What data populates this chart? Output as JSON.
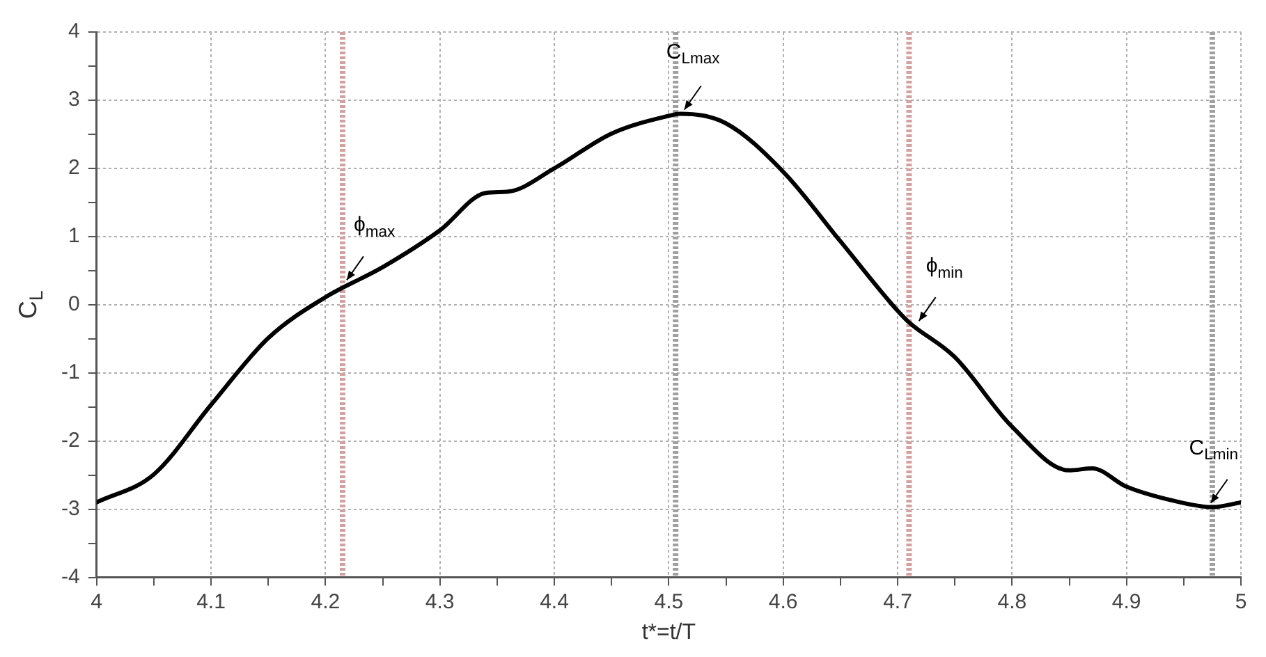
{
  "chart_data": {
    "type": "line",
    "xlabel": "t*=t/T",
    "ylabel": "C$_{L}$",
    "x": [
      4,
      4.05,
      4.1,
      4.15,
      4.2,
      4.25,
      4.3,
      4.34,
      4.36,
      4.4,
      4.45,
      4.5,
      4.51,
      4.55,
      4.6,
      4.65,
      4.7,
      4.71,
      4.75,
      4.8,
      4.85,
      4.87,
      4.9,
      4.95,
      4.975,
      5
    ],
    "series": [
      {
        "color": "#000000",
        "values": [
          -2.9,
          -2.49,
          -1.47,
          -0.49,
          0.11,
          0.55,
          1.09,
          1.64,
          1.66,
          2.0,
          2.51,
          2.77,
          2.8,
          2.66,
          1.95,
          0.93,
          -0.09,
          -0.26,
          -0.77,
          -1.79,
          -2.43,
          -2.4,
          -2.67,
          -2.91,
          -2.97,
          -2.9
        ]
      }
    ],
    "xlim": [
      4,
      5
    ],
    "ylim": [
      -4,
      4
    ],
    "xticks": [
      4,
      {
        "value": 4.05,
        "label": null
      },
      4.1,
      {
        "value": 4.15,
        "label": null
      },
      4.2,
      {
        "value": 4.25,
        "label": null
      },
      4.3,
      {
        "value": 4.35,
        "label": null
      },
      4.4,
      {
        "value": 4.45,
        "label": null
      },
      4.5,
      {
        "value": 4.55,
        "label": null
      },
      4.6,
      {
        "value": 4.65,
        "label": null
      },
      4.7,
      {
        "value": 4.75,
        "label": null
      },
      4.8,
      {
        "value": 4.85,
        "label": null
      },
      4.9,
      {
        "value": 4.95,
        "label": null
      },
      5
    ],
    "yticks": [
      -4,
      {
        "value": -3.5,
        "label": null
      },
      -3,
      {
        "value": -2.5,
        "label": null
      },
      -2,
      {
        "value": -1.5,
        "label": null
      },
      -1,
      {
        "value": -0.5,
        "label": null
      },
      0,
      {
        "value": 0.5,
        "label": null
      },
      1,
      {
        "value": 1.5,
        "label": null
      },
      2,
      {
        "value": 2.5,
        "label": null
      },
      3,
      {
        "value": 3.5,
        "label": null
      },
      4
    ],
    "grid": true,
    "legend": false,
    "marker": "none",
    "line_style": "solid",
    "ref_lines": [
      {
        "axis": "x",
        "value": 4.215,
        "color": "#d4a0a0",
        "line_style": "dashed"
      },
      {
        "axis": "x",
        "value": 4.506,
        "color": "#a0a0a0",
        "line_style": "dashed"
      },
      {
        "axis": "x",
        "value": 4.71,
        "color": "#d4a0a0",
        "line_style": "dashed"
      },
      {
        "axis": "x",
        "value": 4.975,
        "color": "#a0a0a0",
        "line_style": "dashed"
      }
    ],
    "annotations": [
      {
        "text": "ϕ$_{max}$",
        "x": 4.215,
        "y": 0.3
      },
      {
        "text": "C$_{Lmax}$",
        "x": 4.51,
        "y": 2.8
      },
      {
        "text": "ϕ$_{min}$",
        "x": 4.715,
        "y": -0.3
      },
      {
        "text": "C$_{Lmin}$",
        "x": 4.97,
        "y": -2.97
      }
    ]
  }
}
